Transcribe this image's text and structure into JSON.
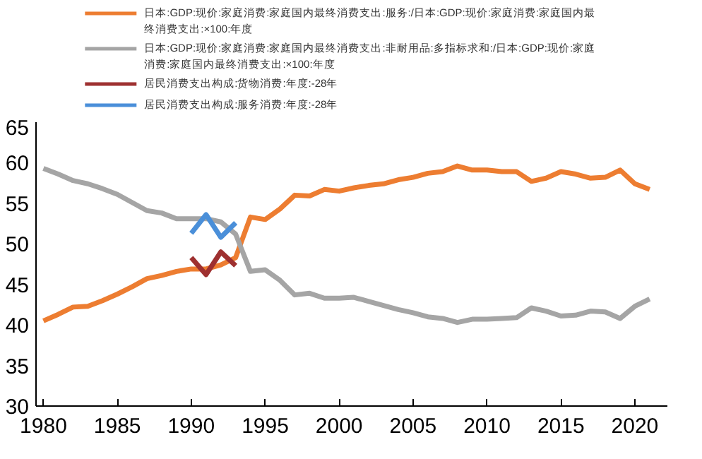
{
  "chart_data": {
    "type": "line",
    "x": [
      1980,
      1981,
      1982,
      1983,
      1984,
      1985,
      1986,
      1987,
      1988,
      1989,
      1990,
      1991,
      1992,
      1993,
      1994,
      1995,
      1996,
      1997,
      1998,
      1999,
      2000,
      2001,
      2002,
      2003,
      2004,
      2005,
      2006,
      2007,
      2008,
      2009,
      2010,
      2011,
      2012,
      2013,
      2014,
      2015,
      2016,
      2017,
      2018,
      2019,
      2020,
      2021
    ],
    "series": [
      {
        "name": "日本:GDP:现价:家庭消费:家庭国内最终消费支出:服务:/日本:GDP:现价:家庭消费:家庭国内最终消费支出:×100:年度",
        "color": "#ed7d31",
        "values": [
          40.5,
          41.3,
          42.2,
          42.3,
          43.0,
          43.8,
          44.7,
          45.7,
          46.1,
          46.6,
          46.9,
          46.9,
          47.4,
          48.3,
          53.3,
          53.0,
          54.3,
          56.0,
          55.9,
          56.7,
          56.5,
          56.9,
          57.2,
          57.4,
          57.9,
          58.2,
          58.7,
          58.9,
          59.6,
          59.1,
          59.1,
          58.9,
          58.9,
          57.7,
          58.1,
          58.9,
          58.6,
          58.1,
          58.2,
          59.1,
          57.4,
          56.7
        ]
      },
      {
        "name": "日本:GDP:现价:家庭消费:家庭国内最终消费支出:非耐用品:多指标求和:/日本:GDP:现价:家庭消费:家庭国内最终消费支出:×100:年度",
        "color": "#a5a5a5",
        "values": [
          59.3,
          58.6,
          57.8,
          57.4,
          56.8,
          56.1,
          55.1,
          54.1,
          53.8,
          53.1,
          53.1,
          53.1,
          52.7,
          51.2,
          46.6,
          46.8,
          45.5,
          43.7,
          43.9,
          43.3,
          43.3,
          43.4,
          42.9,
          42.4,
          41.9,
          41.5,
          41.0,
          40.8,
          40.3,
          40.7,
          40.7,
          40.8,
          40.9,
          42.1,
          41.7,
          41.1,
          41.2,
          41.7,
          41.6,
          40.8,
          42.3,
          43.2
        ]
      },
      {
        "name": "居民消费支出构成:货物消费:年度:-28年",
        "color": "#9e3030",
        "x": [
          1990,
          1991,
          1992,
          1993
        ],
        "values": [
          48.3,
          46.2,
          49.0,
          47.3
        ]
      },
      {
        "name": "居民消费支出构成:服务消费:年度:-28年",
        "color": "#4a8fd9",
        "x": [
          1990,
          1991,
          1992,
          1993
        ],
        "values": [
          51.3,
          53.6,
          50.8,
          52.6
        ]
      }
    ],
    "xlim": [
      1979.5,
      2022.2
    ],
    "xticks": [
      1980,
      1985,
      1990,
      1995,
      2000,
      2005,
      2010,
      2015,
      2020
    ],
    "ylim": [
      30,
      65
    ],
    "yticks": [
      30,
      35,
      40,
      45,
      50,
      55,
      60,
      65
    ],
    "grid": false,
    "legend": "top",
    "line_style": "solid",
    "marker": "none"
  }
}
